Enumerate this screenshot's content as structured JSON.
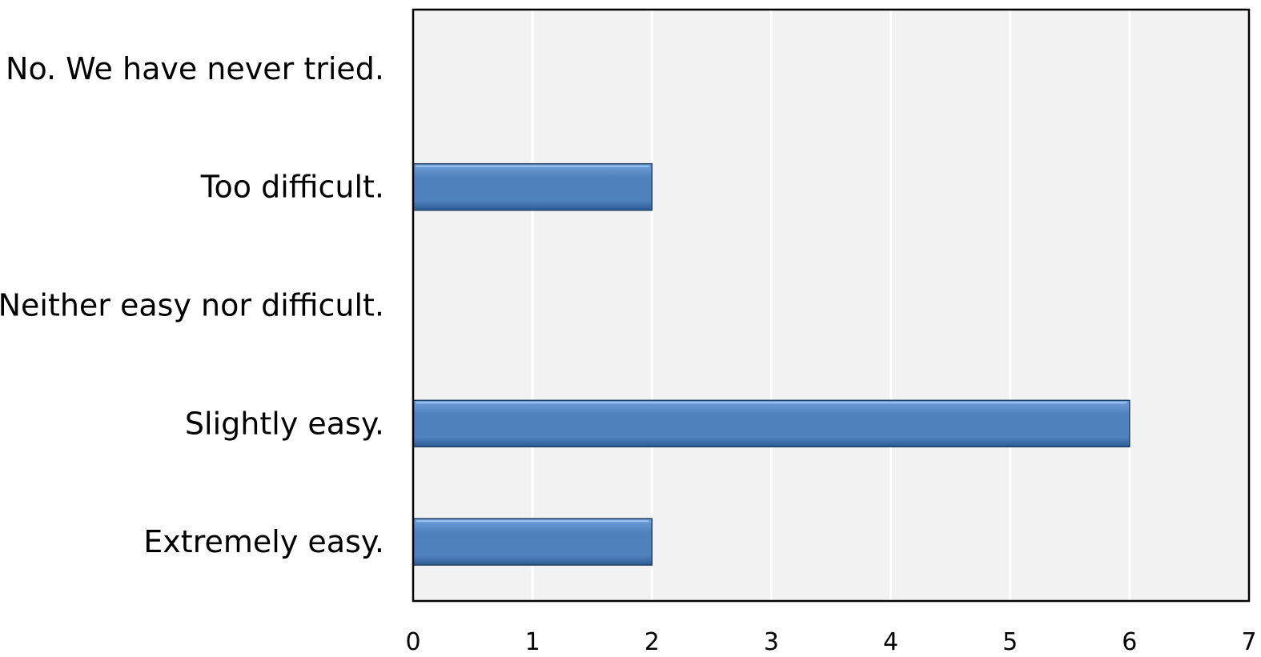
{
  "chart_data": {
    "type": "bar",
    "orientation": "horizontal",
    "categories": [
      "No. We have never tried.",
      "Too difficult.",
      "Neither easy nor difficult.",
      "Slightly easy.",
      "Extremely easy."
    ],
    "values": [
      0,
      2,
      0,
      6,
      2
    ],
    "xlim": [
      0,
      7
    ],
    "xticks": [
      "0",
      "1",
      "2",
      "3",
      "4",
      "5",
      "6",
      "7"
    ],
    "title": "",
    "xlabel": "",
    "ylabel": "",
    "grid": true,
    "legend": "none",
    "colors": {
      "bar": "#4f81bd",
      "bar_light": "#6fa0dc",
      "bar_dark": "#2c5b93",
      "bar_edge": "#1f3f66",
      "plot_background": "#f2f2f2",
      "gridline": "#ffffff",
      "frame": "#000000"
    }
  }
}
